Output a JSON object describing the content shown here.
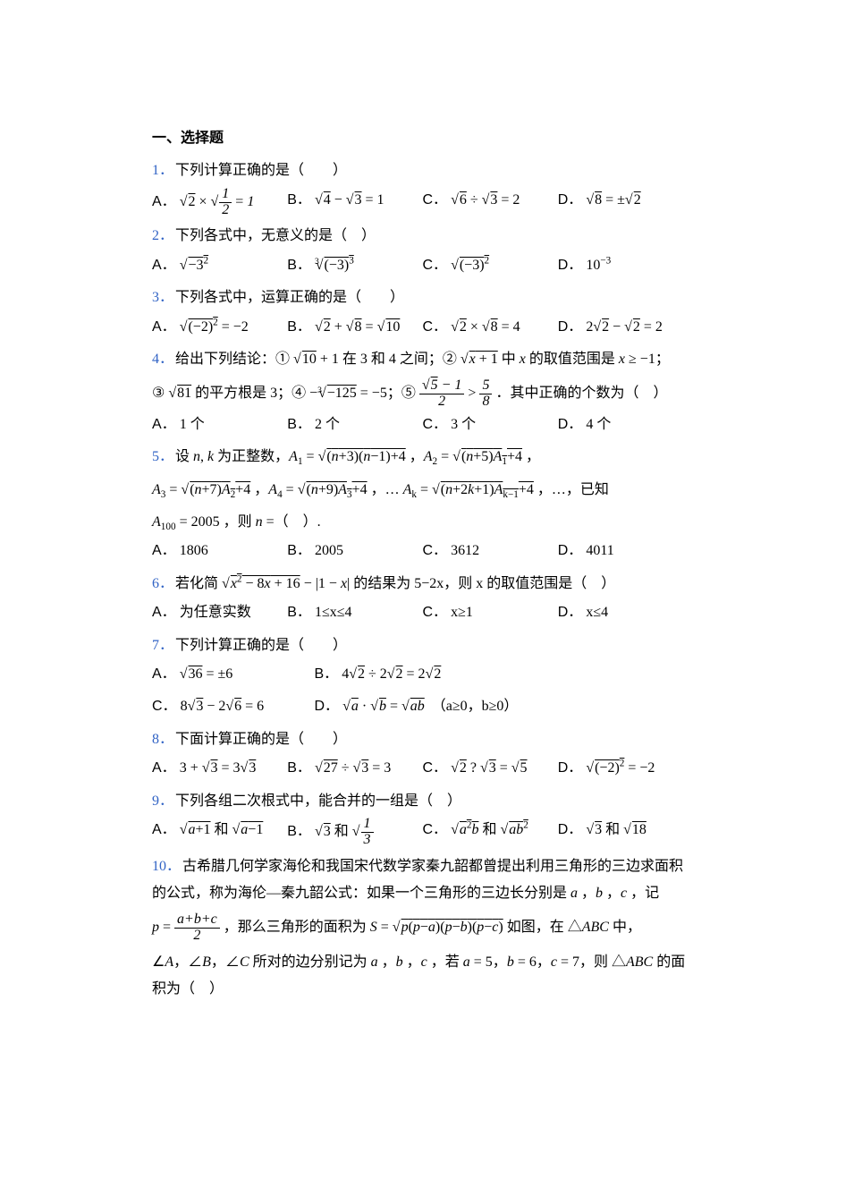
{
  "section_title": "一、选择题",
  "accent_color": "#3163c5",
  "text_color": "#000000",
  "background_color": "#ffffff",
  "font_family": "SimSun",
  "font_size_pt": 12,
  "questions": [
    {
      "num": "1．",
      "stem_html": "下列计算正确的是（　　）",
      "opts": [
        "<span class='root'>√<span class='ov'>2</span></span> × <span class='root'>√<span class='ov'><span class='frac'><span class='num'>1</span><span class='den'>2</span></span></span></span> = <i>1</i>",
        "<span class='root'>√<span class='ov'>4</span></span> − <span class='root'>√<span class='ov'>3</span></span> = 1",
        "<span class='root'>√<span class='ov'>6</span></span> ÷ <span class='root'>√<span class='ov'>3</span></span> = 2",
        "<span class='root'>√<span class='ov'>8</span></span> = ±<span class='root'>√<span class='ov'>2</span></span>"
      ]
    },
    {
      "num": "2．",
      "stem_html": "下列各式中，无意义的是（　）",
      "opts": [
        "<span class='root'>√<span class='ov'>−3<sup>2</sup></span></span>",
        "<span class='cubert'>3</span><span class='root'>√<span class='ov'>(−3)<sup>3</sup></span></span>",
        "<span class='root'>√<span class='ov'>(−3)<sup>2</sup></span></span>",
        "10<sup>−3</sup>"
      ]
    },
    {
      "num": "3．",
      "stem_html": "下列各式中，运算正确的是（　　）",
      "opts": [
        "<span class='root'>√<span class='ov'>(−2)<sup>2</sup></span></span> = −2",
        "<span class='root'>√<span class='ov'>2</span></span> + <span class='root'>√<span class='ov'>8</span></span> = <span class='root'>√<span class='ov'>10</span></span>",
        "<span class='root'>√<span class='ov'>2</span></span> × <span class='root'>√<span class='ov'>8</span></span> = 4",
        "2<span class='root'>√<span class='ov'>2</span></span> − <span class='root'>√<span class='ov'>2</span></span> = 2"
      ]
    },
    {
      "num": "4．",
      "stem_html": "给出下列结论：① <span class='root'>√<span class='ov'>10</span></span> + 1 在 3 和 4 之间；② <span class='root'>√<span class='ov'><i>x</i> + 1</span></span> 中 <i>x</i> 的取值范围是 <i>x</i> ≥ −1；",
      "stem2_html": "③ <span class='root'>√<span class='ov'>81</span></span> 的平方根是 3；④ −<span class='cubert'>3</span><span class='root'>√<span class='ov'>−125</span></span> = −5；⑤ <span class='frac'><span class='num'>√<span class='ov'>5</span> − 1</span><span class='den'>2</span></span> &gt; <span class='frac'><span class='num'>5</span><span class='den'>8</span></span> ．其中正确的个数为（　）",
      "opts": [
        "1 个",
        "2 个",
        "3 个",
        "4 个"
      ]
    },
    {
      "num": "5．",
      "stem_html": "设 <i>n</i>, <i>k</i> 为正整数，<i>A</i><sub>1</sub> = <span class='root'>√<span class='ov'>(<i>n</i>+3)(<i>n</i>−1)+4</span></span> ，<i>A</i><sub>2</sub> = <span class='root'>√<span class='ov'>(<i>n</i>+5)<i>A</i><sub>1</sub>+4</span></span> ，",
      "stem2_html": "<i>A</i><sub>3</sub> = <span class='root'>√<span class='ov'>(<i>n</i>+7)<i>A</i><sub>2</sub>+4</span></span> ，<i>A</i><sub>4</sub> = <span class='root'>√<span class='ov'>(<i>n</i>+9)<i>A</i><sub>3</sub>+4</span></span> ，… <i>A</i><sub>k</sub> = <span class='root'>√<span class='ov'>(<i>n</i>+2<i>k</i>+1)<i>A</i><sub>k−1</sub>+4</span></span> ，…，已知",
      "stem3_html": "<i>A</i><sub>100</sub> = 2005 ，则 <i>n</i> =（　）.",
      "opts": [
        "1806",
        "2005",
        "3612",
        "4011"
      ]
    },
    {
      "num": "6．",
      "stem_html": "若化简 <span class='root'>√<span class='ov'><i>x</i><sup>2</sup> − 8<i>x</i> + 16</span></span> − |1 − <i>x</i>| 的结果为 5−2x，则 x 的取值范围是（　）",
      "opts": [
        "为任意实数",
        "1≤x≤4",
        "x≥1",
        "x≤4"
      ]
    },
    {
      "num": "7．",
      "stem_html": "下列计算正确的是（　　）",
      "optsA": "<span class='root'>√<span class='ov'>36</span></span> = ±6",
      "optsB": "4<span class='root'>√<span class='ov'>2</span></span> ÷ 2<span class='root'>√<span class='ov'>2</span></span> = 2<span class='root'>√<span class='ov'>2</span></span>",
      "optsC": "8<span class='root'>√<span class='ov'>3</span></span> − 2<span class='root'>√<span class='ov'>6</span></span> = 6",
      "optsD": "<span class='root'>√<span class='ov'><i>a</i></span></span> · <span class='root'>√<span class='ov'><i>b</i></span></span> = <span class='root'>√<span class='ov'><i>ab</i></span></span>　（a≥0，b≥0）"
    },
    {
      "num": "8．",
      "stem_html": "下面计算正确的是（　　）",
      "opts": [
        "3 + <span class='root'>√<span class='ov'>3</span></span> = 3<span class='root'>√<span class='ov'>3</span></span>",
        "<span class='root'>√<span class='ov'>27</span></span> ÷ <span class='root'>√<span class='ov'>3</span></span> = 3",
        "<span class='root'>√<span class='ov'>2</span></span> ? <span class='root'>√<span class='ov'>3</span></span> = <span class='root'>√<span class='ov'>5</span></span>",
        "<span class='root'>√<span class='ov'>(−2)<sup>2</sup></span></span> = −2"
      ]
    },
    {
      "num": "9．",
      "stem_html": "下列各组二次根式中，能合并的一组是（　）",
      "opts": [
        "<span class='root'>√<span class='ov'><i>a</i>+1</span></span> 和 <span class='root'>√<span class='ov'><i>a</i>−1</span></span>",
        "<span class='root'>√<span class='ov'>3</span></span> 和 <span class='root'>√<span class='ov'><span class='frac'><span class='num'>1</span><span class='den'>3</span></span></span></span>",
        "<span class='root'>√<span class='ov'><i>a</i><sup>2</sup><i>b</i></span></span> 和 <span class='root'>√<span class='ov'><i>ab</i><sup>2</sup></span></span>",
        "<span class='root'>√<span class='ov'>3</span></span> 和 <span class='root'>√<span class='ov'>18</span></span>"
      ]
    },
    {
      "num": "10．",
      "stem_html": "古希腊几何学家海伦和我国宋代数学家秦九韶都曾提出利用三角形的三边求面积的公式，称为海伦—秦九韶公式：如果一个三角形的三边长分别是 <i>a</i> ，<i>b</i> ，<i>c</i> ，记",
      "stem2_html": "<i>p</i> = <span class='frac'><span class='num'><i>a</i>+<i>b</i>+<i>c</i></span><span class='den'>2</span></span> ，那么三角形的面积为 <i>S</i> = <span class='root'>√<span class='ov'><i>p</i>(<i>p</i>−<i>a</i>)(<i>p</i>−<i>b</i>)(<i>p</i>−<i>c</i>)</span></span>  如图，在 △<i>ABC</i> 中，",
      "stem3_html": "∠<i>A</i>，∠<i>B</i>，∠<i>C</i> 所对的边分别记为 <i>a</i> ，<i>b</i> ，<i>c</i> ，若 <i>a</i> = 5，<i>b</i> = 6，<i>c</i> = 7，则 △<i>ABC</i> 的面积为（　）"
    }
  ],
  "opt_labels": [
    "A．",
    "B．",
    "C．",
    "D．"
  ]
}
